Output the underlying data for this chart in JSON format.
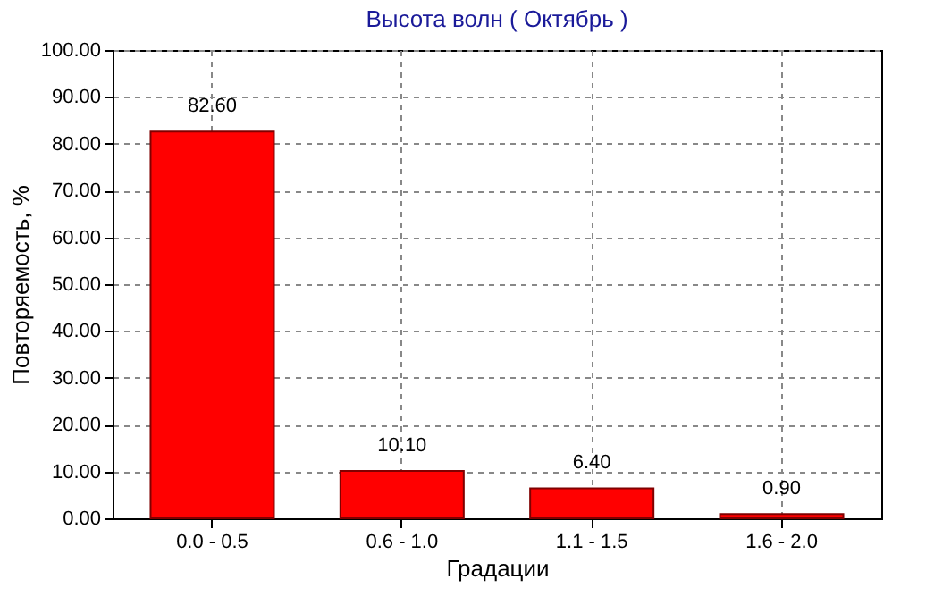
{
  "chart_data": {
    "type": "bar",
    "title": "Высота волн    ( Октябрь )",
    "xlabel": "Градации",
    "ylabel": "Повторяемость, %",
    "categories": [
      "0.0 - 0.5",
      "0.6 - 1.0",
      "1.1 - 1.5",
      "1.6 - 2.0"
    ],
    "values": [
      82.6,
      10.1,
      6.4,
      0.9
    ],
    "value_labels": [
      "82.60",
      "10.10",
      "6.40",
      "0.90"
    ],
    "color": "#ff0000",
    "ylim": [
      0,
      100
    ],
    "yticks": [
      {
        "value": 0,
        "label": "0.00"
      },
      {
        "value": 10,
        "label": "10.00"
      },
      {
        "value": 20,
        "label": "20.00"
      },
      {
        "value": 30,
        "label": "30.00"
      },
      {
        "value": 40,
        "label": "40.00"
      },
      {
        "value": 50,
        "label": "50.00"
      },
      {
        "value": 60,
        "label": "60.00"
      },
      {
        "value": 70,
        "label": "70.00"
      },
      {
        "value": 80,
        "label": "80.00"
      },
      {
        "value": 90,
        "label": "90.00"
      },
      {
        "value": 100,
        "label": "100.00"
      }
    ],
    "grid": true
  }
}
